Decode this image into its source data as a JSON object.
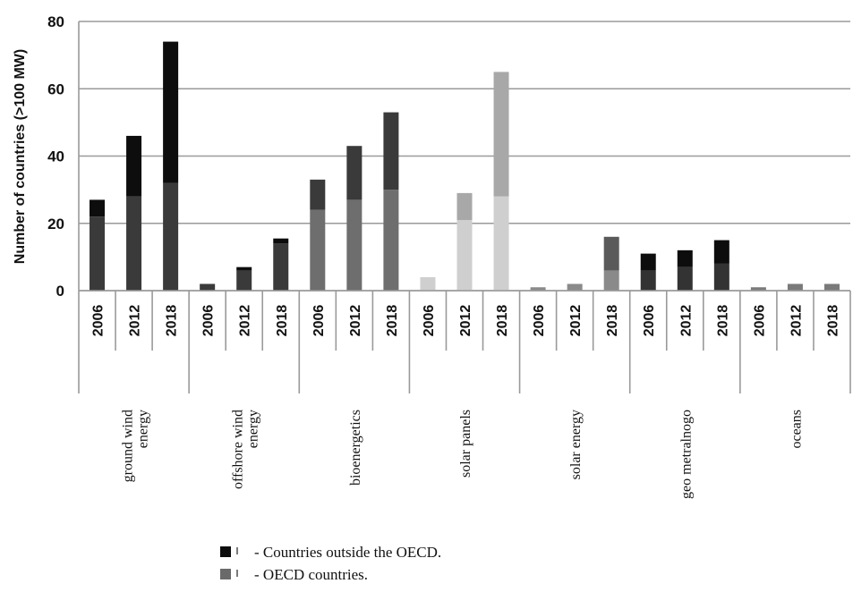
{
  "chart_data": {
    "type": "bar",
    "stacked": true,
    "ylabel": "Number of countries (>100 MW)",
    "xlabel": "",
    "ylim": [
      0,
      80
    ],
    "yticks": [
      0,
      20,
      40,
      60,
      80
    ],
    "grid": true,
    "groups": [
      {
        "label": "ground wind energy",
        "color_oecd": "#3a3a3a",
        "color_outside": "#0d0d0d",
        "bars": [
          {
            "year": "2006",
            "oecd": 22,
            "outside": 5
          },
          {
            "year": "2012",
            "oecd": 28,
            "outside": 18
          },
          {
            "year": "2018",
            "oecd": 32,
            "outside": 42
          }
        ]
      },
      {
        "label": "offshore wind energy",
        "color_oecd": "#3a3a3a",
        "color_outside": "#0d0d0d",
        "bars": [
          {
            "year": "2006",
            "oecd": 2,
            "outside": 0
          },
          {
            "year": "2012",
            "oecd": 6,
            "outside": 1
          },
          {
            "year": "2018",
            "oecd": 14,
            "outside": 1.5
          }
        ]
      },
      {
        "label": "bioenergetics",
        "color_oecd": "#6e6e6e",
        "color_outside": "#3a3a3a",
        "bars": [
          {
            "year": "2006",
            "oecd": 24,
            "outside": 9
          },
          {
            "year": "2012",
            "oecd": 27,
            "outside": 16
          },
          {
            "year": "2018",
            "oecd": 30,
            "outside": 23
          }
        ]
      },
      {
        "label": "solar panels",
        "color_oecd": "#cfcfcf",
        "color_outside": "#a8a8a8",
        "bars": [
          {
            "year": "2006",
            "oecd": 4,
            "outside": 0
          },
          {
            "year": "2012",
            "oecd": 21,
            "outside": 8
          },
          {
            "year": "2018",
            "oecd": 28,
            "outside": 37
          }
        ]
      },
      {
        "label": "solar energy",
        "color_oecd": "#8a8a8a",
        "color_outside": "#5a5a5a",
        "bars": [
          {
            "year": "2006",
            "oecd": 1,
            "outside": 0
          },
          {
            "year": "2012",
            "oecd": 2,
            "outside": 0
          },
          {
            "year": "2018",
            "oecd": 6,
            "outside": 10
          }
        ]
      },
      {
        "label": "geo metralnogo",
        "color_oecd": "#333333",
        "color_outside": "#0d0d0d",
        "bars": [
          {
            "year": "2006",
            "oecd": 6,
            "outside": 5
          },
          {
            "year": "2012",
            "oecd": 7,
            "outside": 5
          },
          {
            "year": "2018",
            "oecd": 8,
            "outside": 7
          }
        ]
      },
      {
        "label": "oceans",
        "color_oecd": "#7a7a7a",
        "color_outside": "#3a3a3a",
        "bars": [
          {
            "year": "2006",
            "oecd": 1,
            "outside": 0
          },
          {
            "year": "2012",
            "oecd": 2,
            "outside": 0
          },
          {
            "year": "2018",
            "oecd": 2,
            "outside": 0
          }
        ]
      }
    ],
    "legend": [
      {
        "label": "- Countries outside the OECD.",
        "color": "#0d0d0d"
      },
      {
        "label": "- OECD countries.",
        "color": "#6a6a6a"
      }
    ],
    "legend_position": "bottom-center"
  }
}
